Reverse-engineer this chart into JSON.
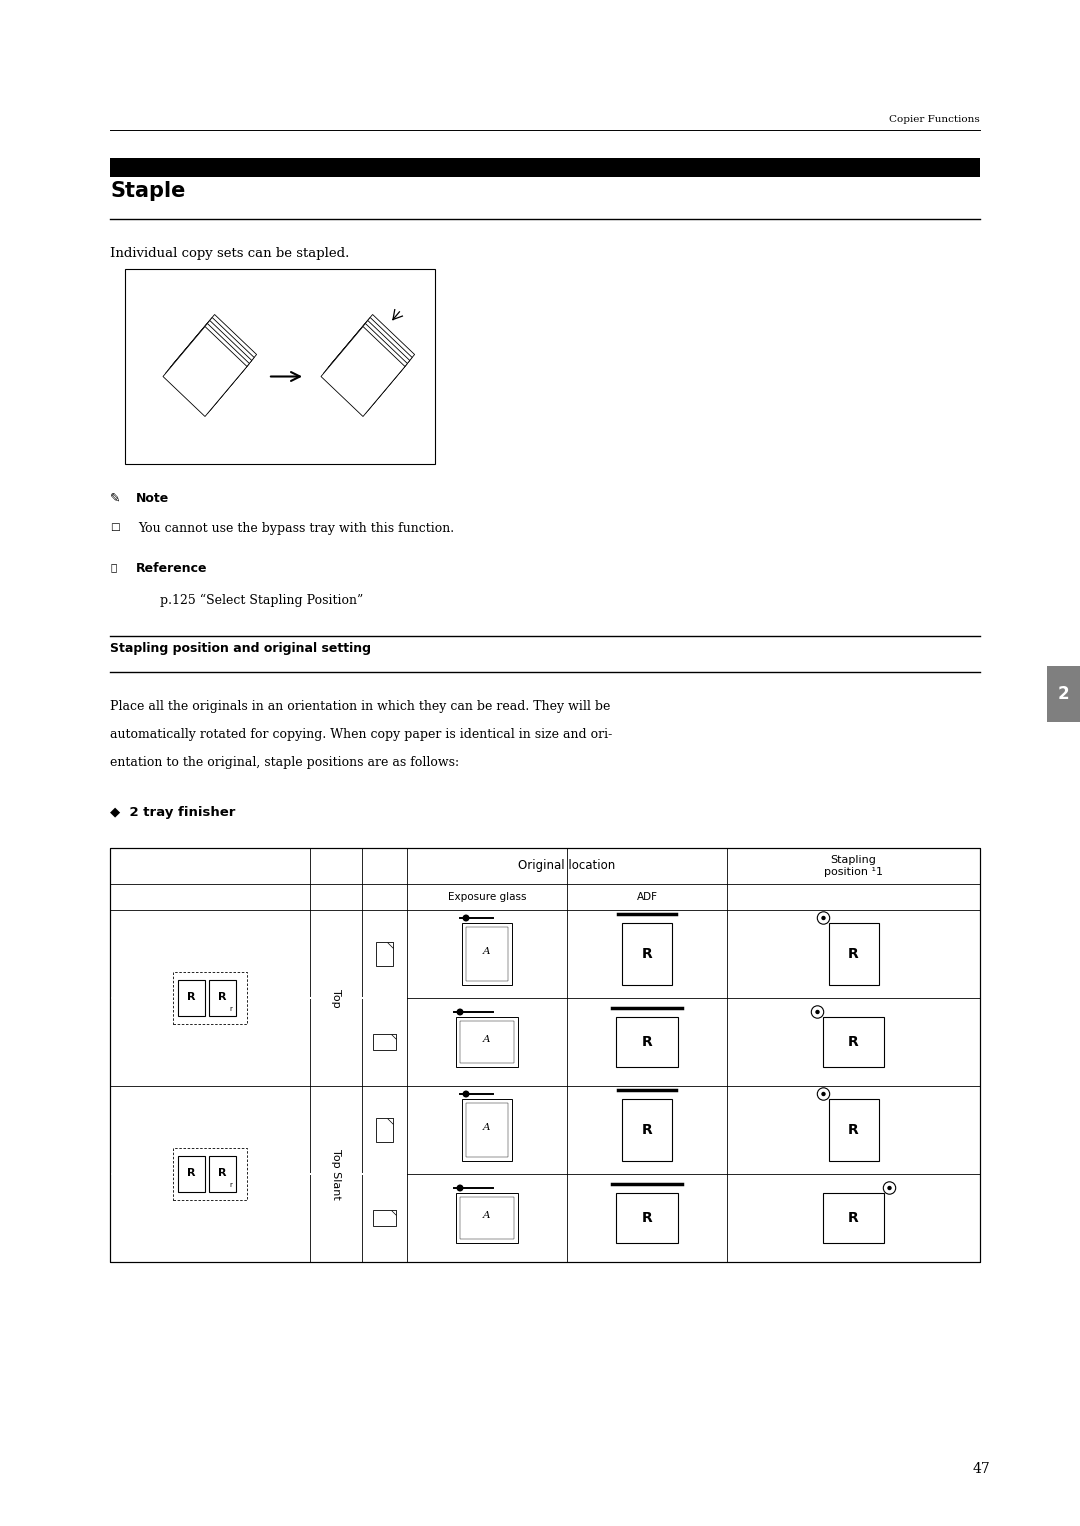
{
  "page_width": 10.8,
  "page_height": 15.26,
  "bg_color": "#ffffff",
  "header_text": "Copier Functions",
  "section_title": "Staple",
  "intro_text": "Individual copy sets can be stapled.",
  "note_label": "Note",
  "note_text": "You cannot use the bypass tray with this function.",
  "ref_label": "Reference",
  "ref_text": "p.125 “Select Stapling Position”",
  "subsection_title": "Stapling position and original setting",
  "body_line1": "Place all the originals in an orientation in which they can be read. They will be",
  "body_line2": "automatically rotated for copying. When copy paper is identical in size and ori-",
  "body_line3": "entation to the original, staple positions are as follows:",
  "finisher_label": "◆  2 tray finisher",
  "page_number": "47",
  "tab_label": "2",
  "tab_color": "#7f7f7f"
}
